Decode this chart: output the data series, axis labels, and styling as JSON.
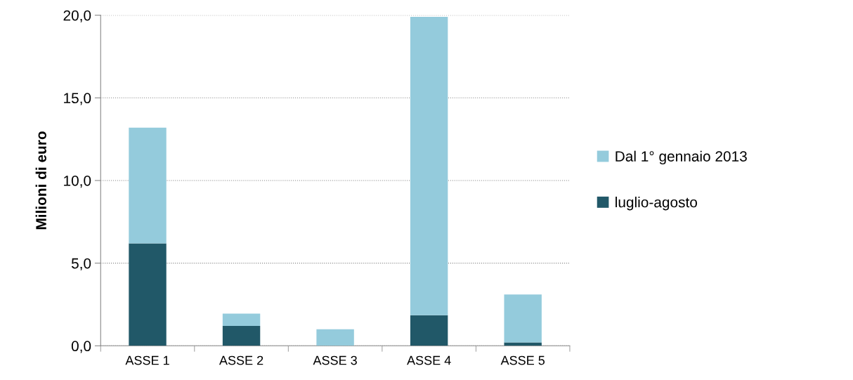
{
  "chart_data": {
    "type": "bar",
    "stacked": true,
    "ylabel": "Milioni di euro",
    "categories": [
      "ASSE 1",
      "ASSE 2",
      "ASSE 3",
      "ASSE 4",
      "ASSE 5"
    ],
    "series": [
      {
        "name": "luglio-agosto",
        "color": "#215868",
        "values": [
          6.2,
          1.2,
          0,
          1.85,
          0.2
        ]
      },
      {
        "name": "Dal 1° gennaio 2013",
        "color": "#94cbdc",
        "values": [
          7.0,
          0.75,
          1.0,
          18.05,
          2.9
        ]
      }
    ],
    "ylim": [
      0,
      20
    ],
    "yticks": [
      {
        "value": 0,
        "label": "0,0"
      },
      {
        "value": 5,
        "label": "5,0"
      },
      {
        "value": 10,
        "label": "10,0"
      },
      {
        "value": 15,
        "label": "15,0"
      },
      {
        "value": 20,
        "label": "20,0"
      }
    ],
    "grid": "y",
    "legend": "right"
  }
}
